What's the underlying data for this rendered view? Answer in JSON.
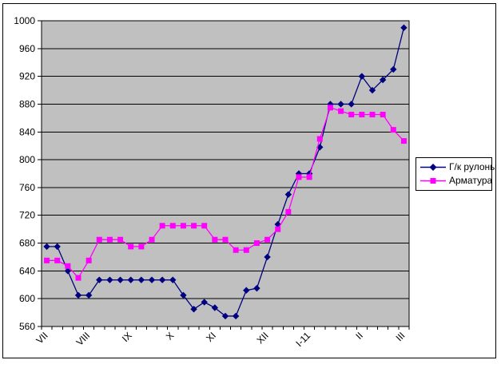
{
  "chart_data": {
    "type": "line",
    "title": "",
    "xlabel": "",
    "ylabel": "",
    "ylim": [
      560,
      1000
    ],
    "y_ticks": [
      560,
      600,
      640,
      680,
      720,
      760,
      800,
      840,
      880,
      920,
      960,
      1000
    ],
    "n_points": 35,
    "grid": true,
    "plot_bg": "#c0c0c0",
    "axis_color": "#000000",
    "legend_position": "right",
    "x_tick_labels": [
      {
        "at": 1,
        "label": "VII"
      },
      {
        "at": 5,
        "label": "VIII"
      },
      {
        "at": 9,
        "label": "IX"
      },
      {
        "at": 13,
        "label": "X"
      },
      {
        "at": 17,
        "label": "XI"
      },
      {
        "at": 22,
        "label": "XII"
      },
      {
        "at": 26,
        "label": "I-11"
      },
      {
        "at": 31,
        "label": "II"
      },
      {
        "at": 35,
        "label": "III"
      }
    ],
    "series": [
      {
        "name": "Г/к рулоны",
        "color": "#000080",
        "marker": "diamond",
        "values": [
          675,
          675,
          640,
          605,
          605,
          627,
          627,
          627,
          627,
          627,
          627,
          627,
          627,
          605,
          585,
          595,
          587,
          575,
          575,
          612,
          615,
          660,
          707,
          750,
          780,
          780,
          818,
          880,
          880,
          880,
          920,
          900,
          915,
          930,
          990
        ]
      },
      {
        "name": "Арматура",
        "color": "#ff00ff",
        "marker": "square",
        "values": [
          655,
          655,
          647,
          630,
          655,
          685,
          685,
          685,
          675,
          675,
          685,
          705,
          705,
          705,
          705,
          705,
          685,
          685,
          670,
          670,
          680,
          685,
          700,
          725,
          775,
          775,
          830,
          875,
          870,
          865,
          865,
          865,
          865,
          843,
          827
        ]
      }
    ]
  },
  "legend": {
    "item1": "Г/к рулоны",
    "item2": "Арматура"
  }
}
